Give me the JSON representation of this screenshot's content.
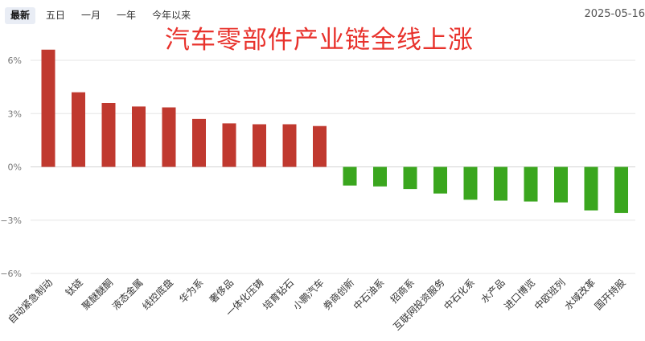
{
  "tabs": [
    {
      "label": "最新",
      "active": true
    },
    {
      "label": "五日",
      "active": false
    },
    {
      "label": "一月",
      "active": false
    },
    {
      "label": "一年",
      "active": false
    },
    {
      "label": "今年以来",
      "active": false
    }
  ],
  "date": "2025-05-16",
  "headline": "汽车零部件产业链全线上涨",
  "colors": {
    "up": "#c0392f",
    "down": "#3aa61e",
    "grid": "#e6e6e6",
    "axis": "#777777"
  },
  "chart_data": {
    "type": "bar",
    "ylim": [
      -6,
      6
    ],
    "yticks": [
      6,
      3,
      0,
      -3,
      -6
    ],
    "ytick_labels": [
      "6%",
      "3%",
      "0%",
      "−3%",
      "−6%"
    ],
    "grid": true,
    "categories": [
      "自动紧急制动",
      "钛链",
      "聚醚醚酮",
      "液态金属",
      "线控底盘",
      "华为系",
      "奢侈品",
      "一体化压铸",
      "培育钻石",
      "小鹏汽车",
      "券商创新",
      "中石油系",
      "招商系",
      "互联网投资服务",
      "中石化系",
      "水产品",
      "进口博览",
      "中欧班列",
      "水域改革",
      "国开持股"
    ],
    "values": [
      6.6,
      4.2,
      3.6,
      3.4,
      3.35,
      2.7,
      2.45,
      2.4,
      2.4,
      2.3,
      -1.05,
      -1.1,
      -1.25,
      -1.5,
      -1.85,
      -1.9,
      -1.95,
      -2.0,
      -2.45,
      -2.6
    ]
  }
}
